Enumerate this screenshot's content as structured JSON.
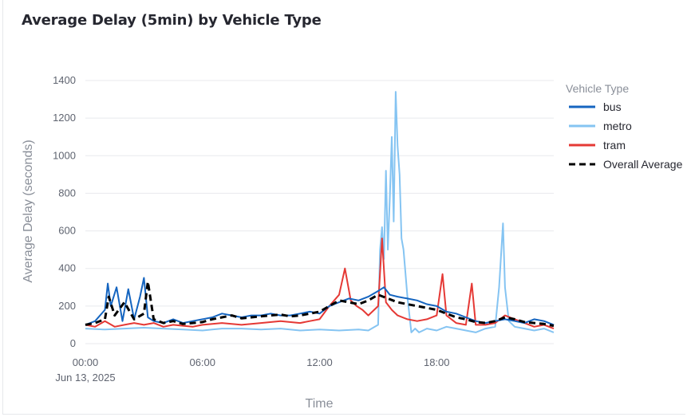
{
  "page": {
    "title": "Average Delay (5min) by Vehicle Type"
  },
  "chart_data": {
    "type": "line",
    "title": "Average Delay (5min) by Vehicle Type",
    "xlabel": "Time",
    "ylabel": "Average Delay (seconds)",
    "xlim": [
      0,
      24
    ],
    "ylim": [
      0,
      1400
    ],
    "x_tick_values": [
      0,
      6,
      12,
      18
    ],
    "x_tick_labels": [
      "00:00",
      "06:00",
      "12:00",
      "18:00"
    ],
    "x_tick_sublabel": "Jun 13, 2025",
    "y_ticks": [
      0,
      200,
      400,
      600,
      800,
      1000,
      1200,
      1400
    ],
    "grid": true,
    "legend": {
      "title": "Vehicle Type",
      "position": "right"
    },
    "series": [
      {
        "name": "bus",
        "color": "#1565c0",
        "dash": "solid",
        "x": [
          0,
          0.5,
          1,
          1.15,
          1.3,
          1.6,
          1.9,
          2.2,
          2.5,
          2.8,
          3.0,
          3.2,
          3.5,
          4,
          4.5,
          5,
          5.5,
          6,
          6.5,
          7,
          7.5,
          8,
          8.5,
          9,
          9.5,
          10,
          10.5,
          11,
          11.5,
          12,
          12.5,
          13,
          13.5,
          14,
          14.5,
          15,
          15.3,
          15.6,
          16,
          16.5,
          17,
          17.5,
          18,
          18.5,
          19,
          19.5,
          20,
          20.5,
          21,
          21.5,
          22,
          22.5,
          23,
          23.5,
          24
        ],
        "y": [
          100,
          120,
          180,
          320,
          200,
          300,
          120,
          290,
          130,
          250,
          350,
          140,
          120,
          110,
          130,
          110,
          120,
          130,
          140,
          160,
          150,
          140,
          150,
          150,
          160,
          150,
          150,
          160,
          170,
          160,
          200,
          220,
          240,
          230,
          250,
          280,
          300,
          260,
          250,
          240,
          230,
          210,
          200,
          170,
          160,
          140,
          120,
          110,
          120,
          130,
          120,
          110,
          130,
          120,
          100
        ]
      },
      {
        "name": "metro",
        "color": "#85c4f2",
        "dash": "solid",
        "x": [
          0,
          1,
          2,
          3,
          4,
          5,
          6,
          6.5,
          7,
          8,
          9,
          10,
          11,
          12,
          13,
          14,
          14.5,
          15,
          15.1,
          15.2,
          15.3,
          15.4,
          15.5,
          15.6,
          15.7,
          15.8,
          15.9,
          16,
          16.1,
          16.2,
          16.3,
          16.5,
          16.7,
          16.9,
          17.1,
          17.5,
          18,
          18.5,
          19,
          19.5,
          20,
          20.5,
          21,
          21.2,
          21.4,
          21.5,
          21.7,
          22,
          22.5,
          23,
          23.5,
          24
        ],
        "y": [
          80,
          75,
          80,
          85,
          80,
          75,
          70,
          75,
          80,
          80,
          75,
          80,
          70,
          75,
          70,
          75,
          70,
          100,
          500,
          620,
          450,
          920,
          500,
          780,
          1100,
          650,
          1340,
          1050,
          900,
          560,
          500,
          250,
          60,
          80,
          60,
          80,
          70,
          90,
          80,
          70,
          60,
          80,
          90,
          300,
          640,
          300,
          120,
          90,
          80,
          70,
          80,
          60
        ]
      },
      {
        "name": "tram",
        "color": "#e53935",
        "dash": "solid",
        "x": [
          0,
          0.5,
          1,
          1.5,
          2,
          2.5,
          3,
          3.5,
          4,
          4.5,
          5,
          5.5,
          6,
          7,
          8,
          9,
          10,
          11,
          11.5,
          12,
          12.5,
          13,
          13.3,
          13.6,
          13.9,
          14.2,
          14.5,
          15,
          15.2,
          15.4,
          15.7,
          16,
          16.5,
          17,
          17.5,
          18,
          18.3,
          18.5,
          19,
          19.5,
          19.8,
          20,
          20.5,
          21,
          21.5,
          22,
          22.5,
          23,
          23.5,
          24
        ],
        "y": [
          100,
          90,
          120,
          90,
          100,
          110,
          100,
          110,
          90,
          100,
          95,
          90,
          100,
          110,
          100,
          110,
          120,
          110,
          120,
          130,
          200,
          260,
          400,
          230,
          200,
          180,
          150,
          200,
          560,
          220,
          180,
          150,
          130,
          120,
          130,
          150,
          370,
          150,
          110,
          100,
          320,
          100,
          100,
          110,
          150,
          130,
          110,
          90,
          100,
          80
        ]
      },
      {
        "name": "Overall Average",
        "color": "#000000",
        "dash": "dashed",
        "x": [
          0,
          0.5,
          1,
          1.2,
          1.5,
          2,
          2.5,
          3,
          3.2,
          3.5,
          4,
          4.5,
          5,
          5.5,
          6,
          6.5,
          7,
          7.5,
          8,
          8.5,
          9,
          9.5,
          10,
          10.5,
          11,
          11.5,
          12,
          12.5,
          13,
          13.5,
          14,
          14.5,
          15,
          15.5,
          16,
          16.5,
          17,
          17.5,
          18,
          18.5,
          19,
          19.5,
          20,
          20.5,
          21,
          21.5,
          22,
          22.5,
          23,
          23.5,
          24
        ],
        "y": [
          100,
          110,
          130,
          250,
          150,
          220,
          130,
          160,
          330,
          130,
          110,
          120,
          105,
          110,
          115,
          130,
          140,
          150,
          135,
          140,
          145,
          150,
          155,
          145,
          150,
          160,
          170,
          200,
          230,
          220,
          210,
          230,
          260,
          240,
          220,
          210,
          200,
          190,
          180,
          160,
          140,
          130,
          115,
          110,
          120,
          140,
          130,
          115,
          110,
          105,
          95
        ]
      }
    ]
  }
}
